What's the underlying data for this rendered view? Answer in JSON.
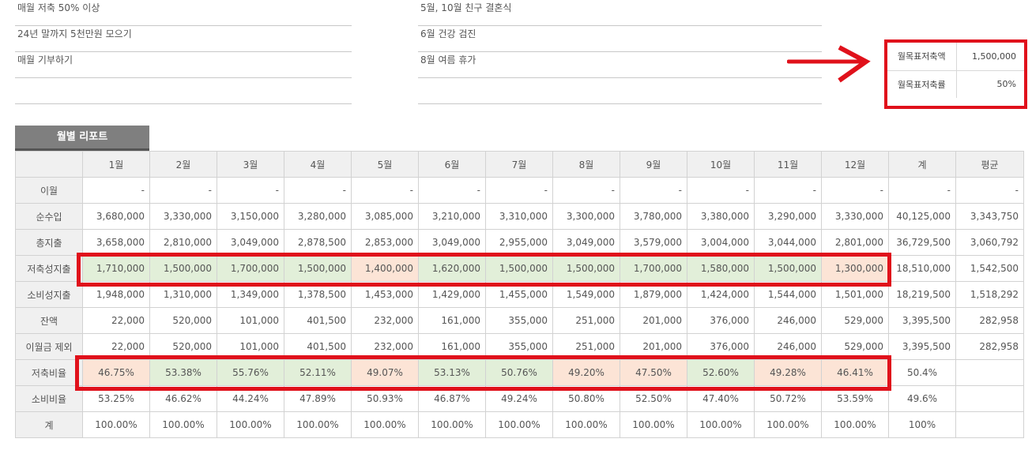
{
  "goals_left": [
    "매월 저축 50% 이상",
    "24년 말까지 5천만원 모으기",
    "매월 기부하기",
    ""
  ],
  "goals_right": [
    "5월, 10월 친구 결혼식",
    "6월 건강 검진",
    "8월 여름 휴가",
    ""
  ],
  "target": {
    "amount_label": "월목표저축액",
    "amount_value": "1,500,000",
    "rate_label": "월목표저축률",
    "rate_value": "50%"
  },
  "report": {
    "tab_label": "월별 리포트",
    "corner": "",
    "headers": [
      "1월",
      "2월",
      "3월",
      "4월",
      "5월",
      "6월",
      "7월",
      "8월",
      "9월",
      "10월",
      "11월",
      "12월",
      "계",
      "평균"
    ],
    "rows": [
      {
        "label": "이월",
        "type": "num",
        "values": [
          "-",
          "-",
          "-",
          "-",
          "-",
          "-",
          "-",
          "-",
          "-",
          "-",
          "-",
          "-",
          "-",
          "-"
        ]
      },
      {
        "label": "순수입",
        "type": "num",
        "values": [
          "3,680,000",
          "3,330,000",
          "3,150,000",
          "3,280,000",
          "3,085,000",
          "3,210,000",
          "3,310,000",
          "3,300,000",
          "3,780,000",
          "3,380,000",
          "3,290,000",
          "3,330,000",
          "40,125,000",
          "3,343,750"
        ]
      },
      {
        "label": "총지출",
        "type": "num",
        "values": [
          "3,658,000",
          "2,810,000",
          "3,049,000",
          "2,878,500",
          "2,853,000",
          "3,049,000",
          "2,955,000",
          "3,049,000",
          "3,579,000",
          "3,004,000",
          "3,044,000",
          "2,801,000",
          "36,729,500",
          "3,060,792"
        ]
      },
      {
        "label": "저축성지출",
        "type": "num",
        "values": [
          "1,710,000",
          "1,500,000",
          "1,700,000",
          "1,500,000",
          "1,400,000",
          "1,620,000",
          "1,500,000",
          "1,500,000",
          "1,700,000",
          "1,580,000",
          "1,500,000",
          "1,300,000",
          "18,510,000",
          "1,542,500"
        ],
        "colors": [
          "g",
          "g",
          "g",
          "g",
          "o",
          "g",
          "g",
          "g",
          "g",
          "g",
          "g",
          "o"
        ]
      },
      {
        "label": "소비성지출",
        "type": "num",
        "values": [
          "1,948,000",
          "1,310,000",
          "1,349,000",
          "1,378,500",
          "1,453,000",
          "1,429,000",
          "1,455,000",
          "1,549,000",
          "1,879,000",
          "1,424,000",
          "1,544,000",
          "1,501,000",
          "18,219,500",
          "1,518,292"
        ]
      },
      {
        "label": "잔액",
        "type": "num",
        "values": [
          "22,000",
          "520,000",
          "101,000",
          "401,500",
          "232,000",
          "161,000",
          "355,000",
          "251,000",
          "201,000",
          "376,000",
          "246,000",
          "529,000",
          "3,395,500",
          "282,958"
        ]
      },
      {
        "label": "이월금 제외",
        "type": "num",
        "values": [
          "22,000",
          "520,000",
          "101,000",
          "401,500",
          "232,000",
          "161,000",
          "355,000",
          "251,000",
          "201,000",
          "376,000",
          "246,000",
          "529,000",
          "3,395,500",
          "282,958"
        ]
      },
      {
        "label": "저축비율",
        "type": "pct",
        "values": [
          "46.75%",
          "53.38%",
          "55.76%",
          "52.11%",
          "49.07%",
          "53.13%",
          "50.76%",
          "49.20%",
          "47.50%",
          "52.60%",
          "49.28%",
          "46.41%",
          "50.4%",
          ""
        ],
        "colors": [
          "o",
          "g",
          "g",
          "g",
          "o",
          "g",
          "g",
          "o",
          "o",
          "g",
          "o",
          "o"
        ]
      },
      {
        "label": "소비비율",
        "type": "pct",
        "values": [
          "53.25%",
          "46.62%",
          "44.24%",
          "47.89%",
          "50.93%",
          "46.87%",
          "49.24%",
          "50.80%",
          "52.50%",
          "47.40%",
          "50.72%",
          "53.59%",
          "49.6%",
          ""
        ]
      },
      {
        "label": "계",
        "type": "pct",
        "values": [
          "100.00%",
          "100.00%",
          "100.00%",
          "100.00%",
          "100.00%",
          "100.00%",
          "100.00%",
          "100.00%",
          "100.00%",
          "100.00%",
          "100.00%",
          "100.00%",
          "100%",
          ""
        ]
      }
    ]
  },
  "colors": {
    "green_cell": "#e2efd9",
    "orange_cell": "#fce4d6",
    "highlight_red": "#e0111b",
    "tab_gray": "#7f7f7f"
  }
}
